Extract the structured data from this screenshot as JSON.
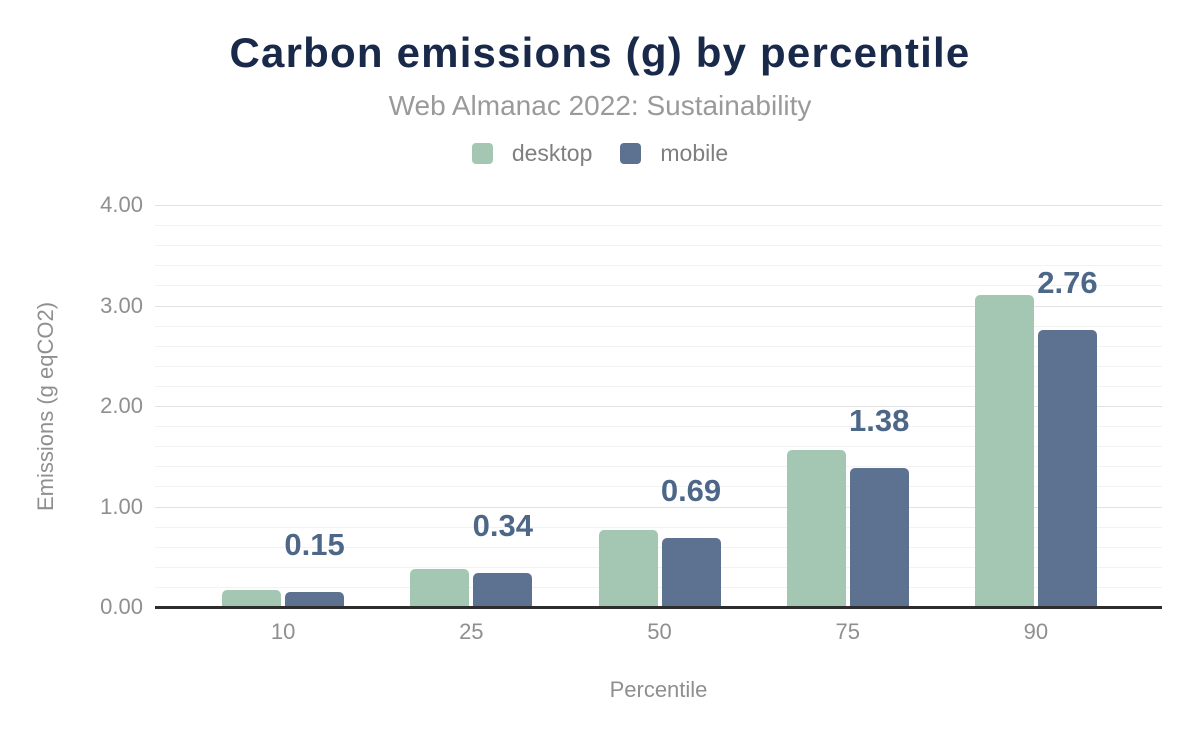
{
  "chart_data": {
    "type": "bar",
    "title": "Carbon emissions (g) by percentile",
    "subtitle": "Web Almanac 2022: Sustainability",
    "xlabel": "Percentile",
    "ylabel": "Emissions (g eqCO2)",
    "categories": [
      "10",
      "25",
      "50",
      "75",
      "90"
    ],
    "series": [
      {
        "name": "desktop",
        "color": "#a4c7b4",
        "values": [
          0.17,
          0.38,
          0.77,
          1.56,
          3.1
        ],
        "labels_shown": false
      },
      {
        "name": "mobile",
        "color": "#5d7190",
        "values": [
          0.15,
          0.34,
          0.69,
          1.38,
          2.76
        ],
        "labels_shown": true,
        "labels": [
          "0.15",
          "0.34",
          "0.69",
          "1.38",
          "2.76"
        ]
      }
    ],
    "ylim": [
      0,
      4
    ],
    "y_ticks": [
      "0.00",
      "1.00",
      "2.00",
      "3.00",
      "4.00"
    ],
    "y_minor_step": 0.2,
    "grid": true,
    "legend_position": "top"
  },
  "colors": {
    "background": "#ffffff",
    "title": "#18294a",
    "subtitle": "#9a9a9a",
    "axis_text": "#8f8f8f",
    "legend_text": "#7f7f7f",
    "value_label": "#4c6787",
    "gridline_minor": "#f2f2f2",
    "gridline_major": "#e2e2e2",
    "axis_line": "#2d2d2d",
    "desktop_bar": "#a4c7b4",
    "mobile_bar": "#5d7190"
  }
}
